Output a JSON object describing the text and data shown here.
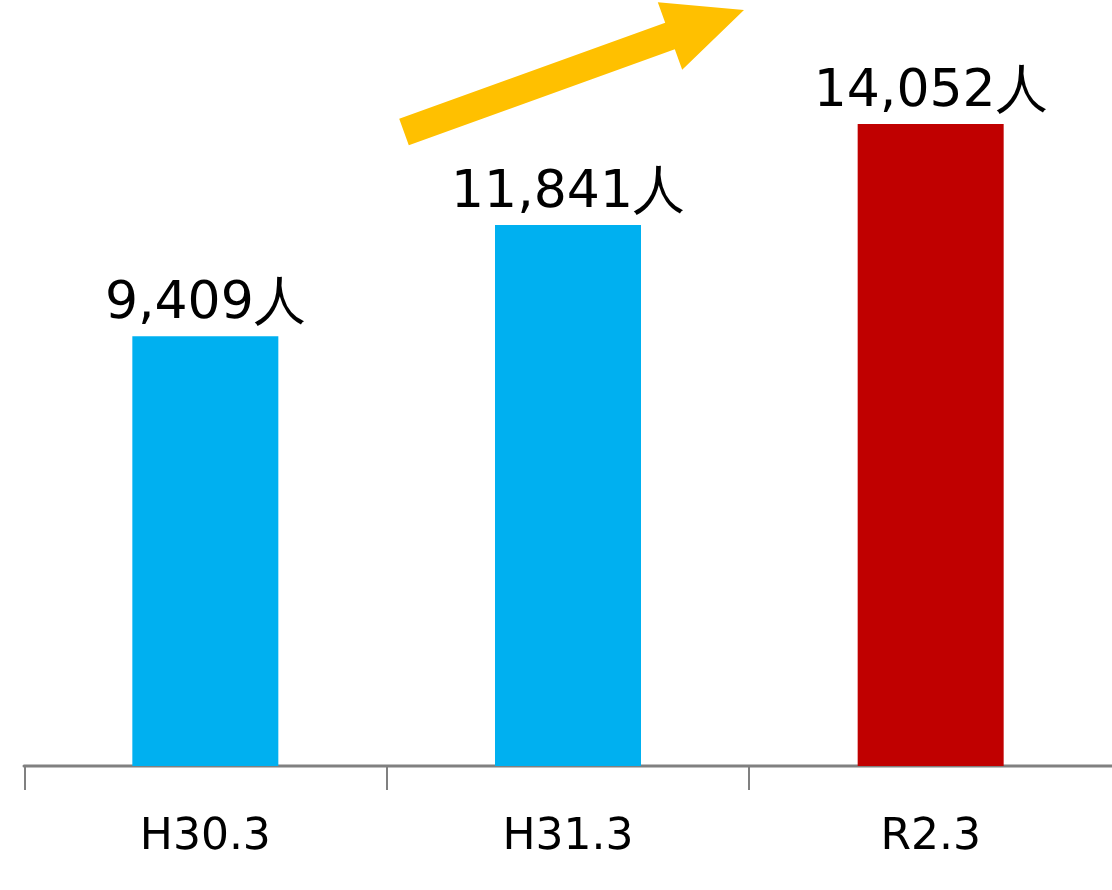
{
  "chart_data": {
    "type": "bar",
    "categories": [
      "H30.3",
      "H31.3",
      "R2.3"
    ],
    "values": [
      9409,
      11841,
      14052
    ],
    "colors": [
      "#00b0f0",
      "#00b0f0",
      "#c00000"
    ],
    "value_labels": [
      "9,409人",
      "11,841人",
      "14,052人"
    ],
    "tick_labels": "x"
  }
}
